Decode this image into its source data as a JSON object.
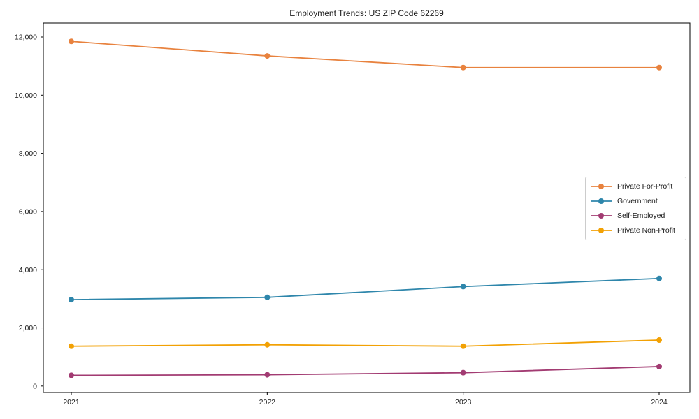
{
  "chart_data": {
    "type": "line",
    "title": "Employment Trends: US ZIP Code 62269",
    "x": [
      2021,
      2022,
      2023,
      2024
    ],
    "x_tick_labels": [
      "2021",
      "2022",
      "2023",
      "2024"
    ],
    "series": [
      {
        "name": "Private For-Profit",
        "color": "#E8823E",
        "values": [
          11850,
          11350,
          10950,
          10950
        ]
      },
      {
        "name": "Government",
        "color": "#2E86AB",
        "values": [
          2970,
          3050,
          3420,
          3700
        ]
      },
      {
        "name": "Self-Employed",
        "color": "#A23B72",
        "values": [
          370,
          390,
          460,
          670
        ]
      },
      {
        "name": "Private Non-Profit",
        "color": "#F2A104",
        "values": [
          1370,
          1420,
          1370,
          1580
        ]
      }
    ],
    "xlabel": "",
    "ylabel": "",
    "y_ticks": [
      0,
      2000,
      4000,
      6000,
      8000,
      10000,
      12000
    ],
    "y_tick_labels": [
      "0",
      "2,000",
      "4,000",
      "6,000",
      "8,000",
      "10,000",
      "12,000"
    ],
    "ylim": [
      -220,
      12480
    ],
    "grid": false,
    "legend_position": "center right",
    "marker": "circle",
    "axis_color": "#000000",
    "text_color": "#1a1a1a"
  }
}
